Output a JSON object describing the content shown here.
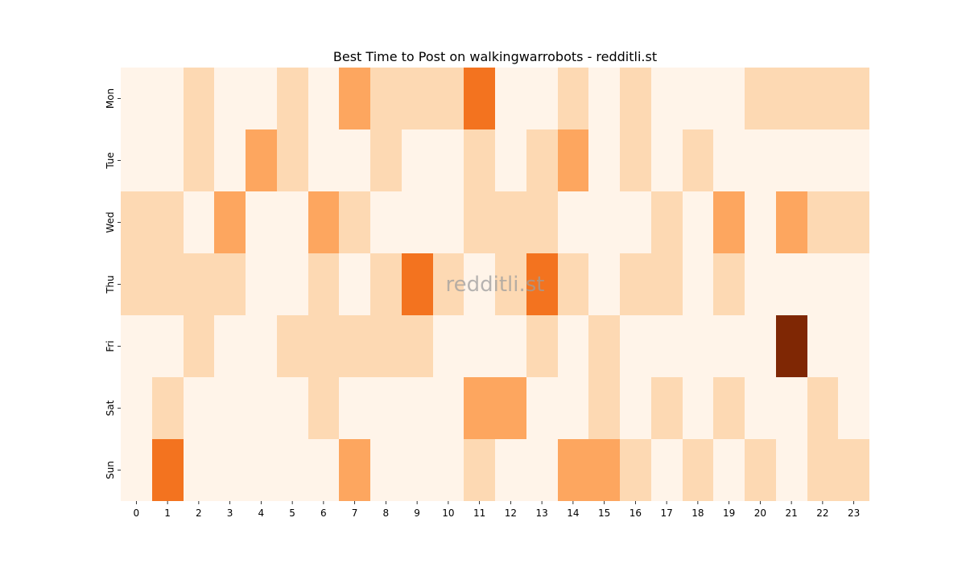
{
  "chart_data": {
    "type": "heatmap",
    "title": "Best Time to Post on walkingwarrobots - redditli.st",
    "xlabel": "",
    "ylabel": "",
    "watermark": "redditli.st",
    "x_categories": [
      "0",
      "1",
      "2",
      "3",
      "4",
      "5",
      "6",
      "7",
      "8",
      "9",
      "10",
      "11",
      "12",
      "13",
      "14",
      "15",
      "16",
      "17",
      "18",
      "19",
      "20",
      "21",
      "22",
      "23"
    ],
    "y_categories": [
      "Mon",
      "Tue",
      "Wed",
      "Thu",
      "Fri",
      "Sat",
      "Sun"
    ],
    "colormap": "Oranges",
    "value_range": [
      0,
      4
    ],
    "level_colors": [
      "#fff4e9",
      "#fdd9b3",
      "#fda65f",
      "#f3731f",
      "#7f2704"
    ],
    "values": [
      [
        0,
        0,
        1,
        0,
        0,
        1,
        0,
        2,
        1,
        1,
        1,
        3,
        0,
        0,
        1,
        0,
        1,
        0,
        0,
        0,
        1,
        1,
        1,
        1
      ],
      [
        0,
        0,
        1,
        0,
        2,
        1,
        0,
        0,
        1,
        0,
        0,
        1,
        0,
        1,
        2,
        0,
        1,
        0,
        1,
        0,
        0,
        0,
        0,
        0
      ],
      [
        1,
        1,
        0,
        2,
        0,
        0,
        2,
        1,
        0,
        0,
        0,
        1,
        1,
        1,
        0,
        0,
        0,
        1,
        0,
        2,
        0,
        2,
        1,
        1
      ],
      [
        1,
        1,
        1,
        1,
        0,
        0,
        1,
        0,
        1,
        3,
        1,
        0,
        1,
        3,
        1,
        0,
        1,
        1,
        0,
        1,
        0,
        0,
        0,
        0
      ],
      [
        0,
        0,
        1,
        0,
        0,
        1,
        1,
        1,
        1,
        1,
        0,
        0,
        0,
        1,
        0,
        1,
        0,
        0,
        0,
        0,
        0,
        4,
        0,
        0
      ],
      [
        0,
        1,
        0,
        0,
        0,
        0,
        1,
        0,
        0,
        0,
        0,
        2,
        2,
        0,
        0,
        1,
        0,
        1,
        0,
        1,
        0,
        0,
        1,
        0
      ],
      [
        0,
        3,
        0,
        0,
        0,
        0,
        0,
        2,
        0,
        0,
        0,
        1,
        0,
        0,
        2,
        2,
        1,
        0,
        1,
        0,
        1,
        0,
        1,
        1
      ]
    ],
    "grid": false,
    "legend": "none"
  }
}
